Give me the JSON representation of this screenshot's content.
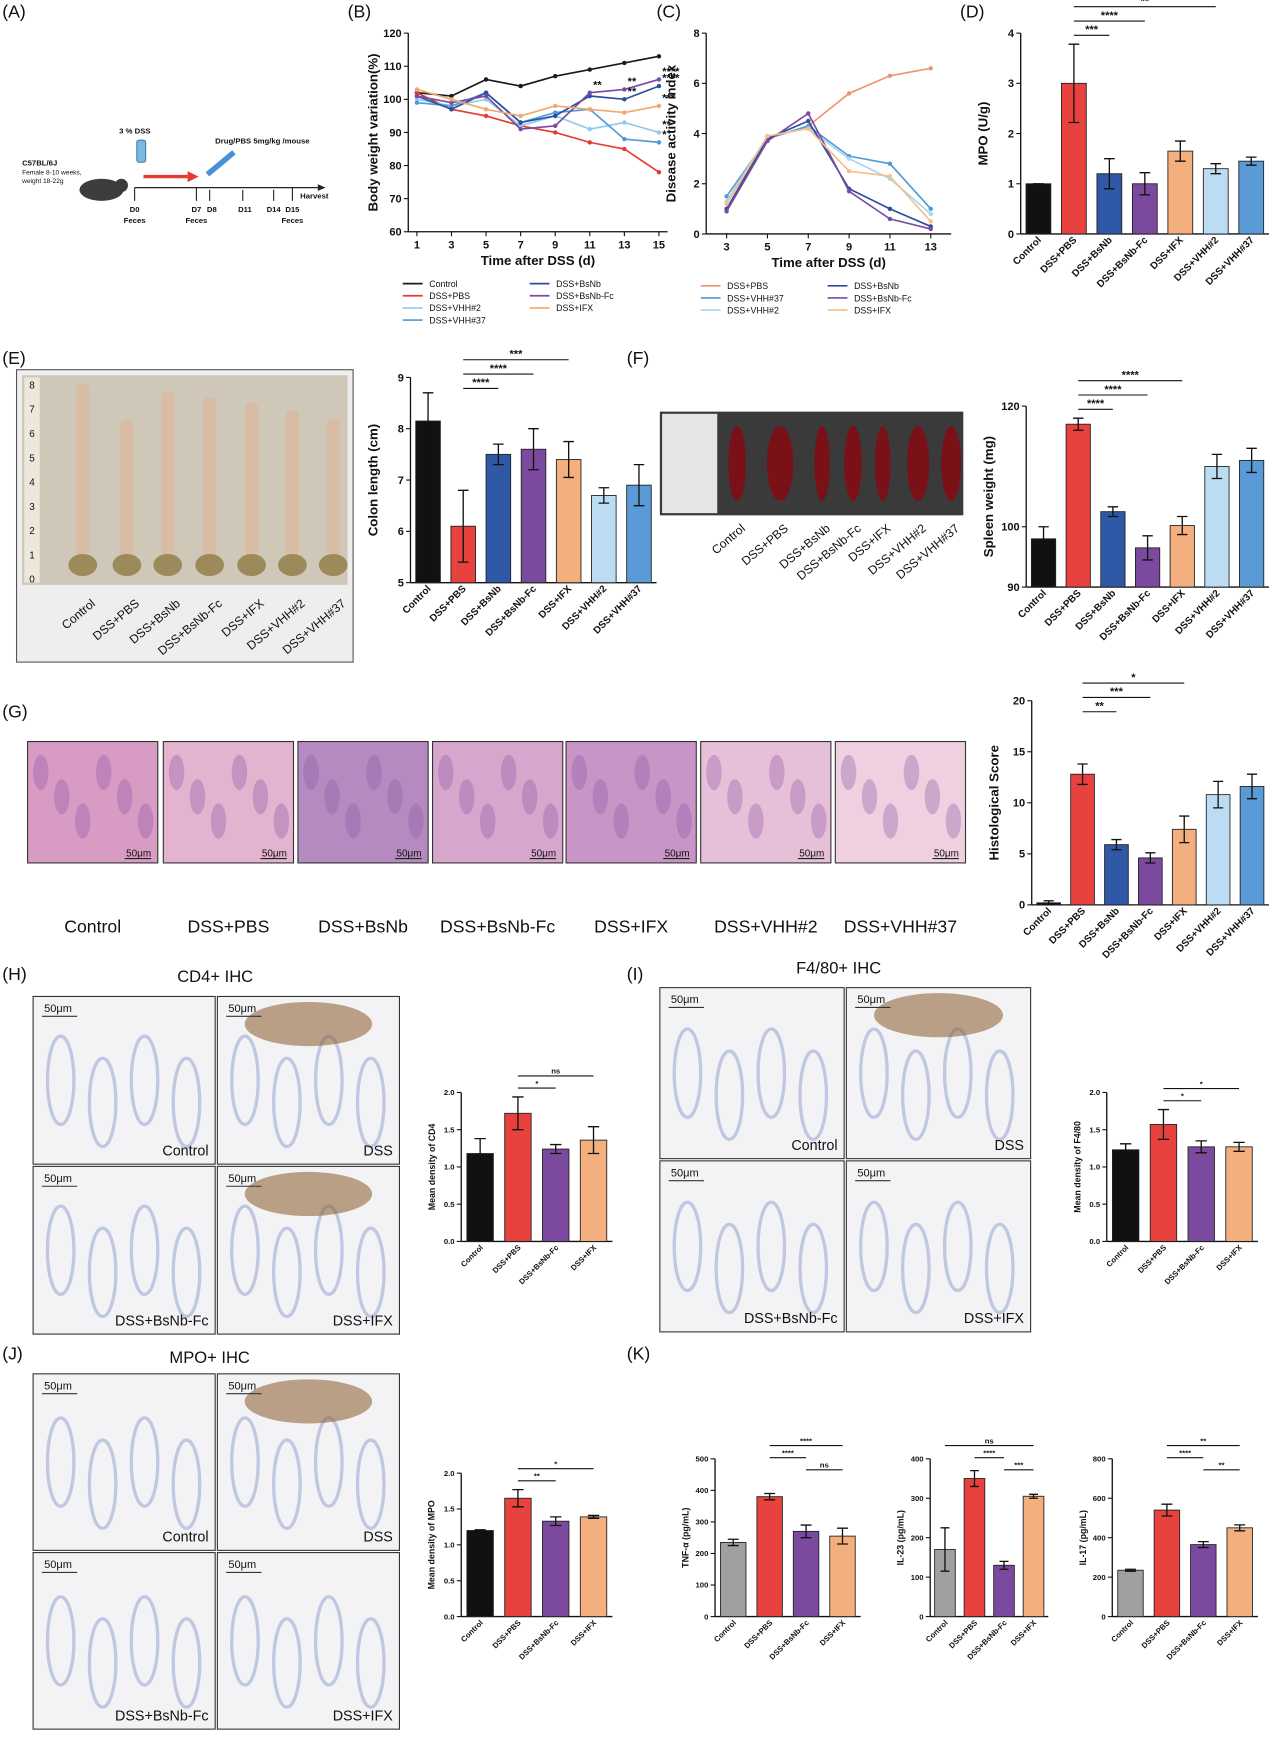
{
  "figure": {
    "panel_labels": [
      "(A)",
      "(B)",
      "(C)",
      "(D)",
      "(E)",
      "(F)",
      "(G)",
      "(H)",
      "(I)",
      "(J)",
      "(K)"
    ],
    "scale_bar": "50μm",
    "schematic": {
      "strain": "C57BL/6J",
      "mice": "Female 8-10 weeks,",
      "weight": "weight 18-22g",
      "dss": "3 % DSS",
      "drug": "Drug/PBS 5mg/kg /mouse",
      "days": [
        "D0",
        "D7",
        "D8",
        "D11",
        "D14",
        "D15"
      ],
      "sampling": "Feces",
      "harvest": "Harvest"
    },
    "colon_photo": {
      "ruler": [
        "8",
        "7",
        "6",
        "5",
        "4",
        "3",
        "2",
        "1",
        "0"
      ],
      "labels": [
        "Control",
        "DSS+PBS",
        "DSS+BsNb",
        "DSS+BsNb-Fc",
        "DSS+IFX",
        "DSS+VHH#2",
        "DSS+VHH#37"
      ]
    },
    "spleen_photo": {
      "labels": [
        "Control",
        "DSS+PBS",
        "DSS+BsNb",
        "DSS+BsNb-Fc",
        "DSS+IFX",
        "DSS+VHH#2",
        "DSS+VHH#37"
      ]
    },
    "histology": {
      "labels": [
        "Control",
        "DSS+PBS",
        "DSS+BsNb",
        "DSS+BsNb-Fc",
        "DSS+IFX",
        "DSS+VHH#2",
        "DSS+VHH#37"
      ]
    },
    "ihc": [
      {
        "title": "CD4+ IHC",
        "labels": [
          "Control",
          "DSS",
          "DSS+BsNb-Fc",
          "DSS+IFX"
        ]
      },
      {
        "title": "F4/80+ IHC",
        "labels": [
          "Control",
          "DSS",
          "DSS+BsNb-Fc",
          "DSS+IFX"
        ]
      },
      {
        "title": "MPO+ IHC",
        "labels": [
          "Control",
          "DSS",
          "DSS+BsNb-Fc",
          "DSS+IFX"
        ]
      }
    ]
  },
  "chart_data": [
    {
      "type": "line",
      "ylabel": "Body weight variation(%)",
      "xlabel": "Time after DSS (d)",
      "x": [
        1,
        3,
        5,
        7,
        9,
        11,
        13,
        15
      ],
      "xlim": [
        0.5,
        15.5
      ],
      "xticks": [
        1,
        3,
        5,
        7,
        9,
        11,
        13,
        15
      ],
      "ylim": [
        60,
        120
      ],
      "yticks": [
        60,
        70,
        80,
        90,
        100,
        110,
        120
      ],
      "series": [
        {
          "name": "Control",
          "color": "#1a1a1a",
          "values": [
            102,
            101,
            106,
            104,
            107,
            109,
            111,
            113
          ]
        },
        {
          "name": "DSS+PBS",
          "color": "#e33b32",
          "values": [
            102,
            97,
            95,
            92,
            90,
            87,
            85,
            78
          ]
        },
        {
          "name": "DSS+VHH#2",
          "color": "#8ecbee",
          "values": [
            100,
            98,
            100,
            92,
            95,
            91,
            93,
            90
          ]
        },
        {
          "name": "DSS+VHH#37",
          "color": "#4f9ad8",
          "values": [
            99,
            98,
            102,
            93,
            96,
            97,
            88,
            87
          ]
        },
        {
          "name": "DSS+BsNb",
          "color": "#2b4ea0",
          "values": [
            101,
            97,
            102,
            93,
            95,
            101,
            100,
            104
          ]
        },
        {
          "name": "DSS+BsNb-Fc",
          "color": "#7a4c9f",
          "values": [
            101,
            99,
            101,
            91,
            92,
            102,
            103,
            106
          ]
        },
        {
          "name": "DSS+IFX",
          "color": "#f4a76a",
          "values": [
            103,
            100,
            97,
            95,
            98,
            97,
            96,
            98
          ]
        }
      ],
      "annotations": [
        {
          "text": "**",
          "series": 5,
          "point": 5
        },
        {
          "text": "**",
          "series": 5,
          "point": 6
        },
        {
          "text": "**",
          "series": 4,
          "point": 6
        },
        {
          "text": "****",
          "series": 5,
          "point": 7
        },
        {
          "text": "****",
          "series": 4,
          "point": 7
        },
        {
          "text": "***",
          "series": 6,
          "point": 7
        },
        {
          "text": "**",
          "series": 2,
          "point": 7
        },
        {
          "text": "*",
          "series": 3,
          "point": 7
        }
      ]
    },
    {
      "type": "line",
      "ylabel": "Disease activity index",
      "xlabel": "Time after DSS (d)",
      "x": [
        3,
        5,
        7,
        9,
        11,
        13
      ],
      "xlim": [
        2,
        14
      ],
      "xticks": [
        3,
        5,
        7,
        9,
        11,
        13
      ],
      "ylim": [
        0,
        8
      ],
      "yticks": [
        0,
        2,
        4,
        6,
        8
      ],
      "series": [
        {
          "name": "DSS+PBS",
          "color": "#f0956b",
          "values": [
            1.2,
            3.8,
            4.3,
            5.6,
            6.3,
            6.6
          ]
        },
        {
          "name": "DSS+VHH#37",
          "color": "#4f9ad8",
          "values": [
            1.5,
            3.8,
            4.3,
            3.1,
            2.8,
            1.0
          ]
        },
        {
          "name": "DSS+VHH#2",
          "color": "#a9d6f2",
          "values": [
            1.3,
            3.9,
            4.2,
            3.0,
            2.2,
            0.8
          ]
        },
        {
          "name": "DSS+BsNb",
          "color": "#2b4ea0",
          "values": [
            1.0,
            3.8,
            4.5,
            1.8,
            1.0,
            0.3
          ]
        },
        {
          "name": "DSS+BsNb-Fc",
          "color": "#7a4c9f",
          "values": [
            0.9,
            3.7,
            4.8,
            1.7,
            0.6,
            0.2
          ]
        },
        {
          "name": "DSS+IFX",
          "color": "#f5c08a",
          "values": [
            1.2,
            3.9,
            4.2,
            2.5,
            2.3,
            0.5
          ]
        }
      ]
    },
    {
      "type": "bar",
      "ylabel": "MPO (U/g)",
      "categories": [
        "Control",
        "DSS+PBS",
        "DSS+BsNb",
        "DSS+BsNb-Fc",
        "DSS+IFX",
        "DSS+VHH#2",
        "DSS+VHH#37"
      ],
      "values": [
        1.0,
        3.0,
        1.2,
        1.0,
        1.65,
        1.3,
        1.45
      ],
      "errors": [
        0,
        0.78,
        0.3,
        0.22,
        0.2,
        0.1,
        0.08
      ],
      "colors": [
        "#111111",
        "#e8423f",
        "#2f58a6",
        "#7b4a9e",
        "#f3b07e",
        "#bcdcf3",
        "#5a9ad6"
      ],
      "ylim": [
        0,
        4
      ],
      "yticks": [
        0,
        1,
        2,
        3,
        4
      ],
      "comparisons": [
        {
          "pair": [
            1,
            2
          ],
          "label": "***"
        },
        {
          "pair": [
            1,
            3
          ],
          "label": "****"
        },
        {
          "pair": [
            1,
            5
          ],
          "label": "**"
        }
      ]
    },
    {
      "type": "bar",
      "ylabel": "Colon length (cm)",
      "categories": [
        "Control",
        "DSS+PBS",
        "DSS+BsNb",
        "DSS+BsNb-Fc",
        "DSS+IFX",
        "DSS+VHH#2",
        "DSS+VHH#37"
      ],
      "values": [
        8.15,
        6.1,
        7.5,
        7.6,
        7.4,
        6.7,
        6.9
      ],
      "errors": [
        0.55,
        0.7,
        0.2,
        0.4,
        0.35,
        0.15,
        0.4
      ],
      "colors": [
        "#111111",
        "#e8423f",
        "#2f58a6",
        "#7b4a9e",
        "#f3b07e",
        "#bcdcf3",
        "#5a9ad6"
      ],
      "ylim": [
        5,
        9
      ],
      "yticks": [
        5,
        6,
        7,
        8,
        9
      ],
      "comparisons": [
        {
          "pair": [
            1,
            2
          ],
          "label": "****"
        },
        {
          "pair": [
            1,
            3
          ],
          "label": "****"
        },
        {
          "pair": [
            1,
            4
          ],
          "label": "***"
        }
      ]
    },
    {
      "type": "bar",
      "ylabel": "Spleen weight (mg)",
      "categories": [
        "Control",
        "DSS+PBS",
        "DSS+BsNb",
        "DSS+BsNb-Fc",
        "DSS+IFX",
        "DSS+VHH#2",
        "DSS+VHH#37"
      ],
      "values": [
        98,
        117,
        102.5,
        96.5,
        100.2,
        110,
        111
      ],
      "errors": [
        2,
        1,
        0.8,
        2,
        1.5,
        2,
        2
      ],
      "colors": [
        "#111111",
        "#e8423f",
        "#2f58a6",
        "#7b4a9e",
        "#f3b07e",
        "#bcdcf3",
        "#5a9ad6"
      ],
      "ylim": [
        90,
        120
      ],
      "yticks": [
        90,
        100,
        120
      ],
      "comparisons": [
        {
          "pair": [
            1,
            2
          ],
          "label": "****"
        },
        {
          "pair": [
            1,
            3
          ],
          "label": "****"
        },
        {
          "pair": [
            1,
            4
          ],
          "label": "****"
        }
      ]
    },
    {
      "type": "bar",
      "ylabel": "Histological Score",
      "categories": [
        "Control",
        "DSS+PBS",
        "DSS+BsNb",
        "DSS+BsNb-Fc",
        "DSS+IFX",
        "DSS+VHH#2",
        "DSS+VHH#37"
      ],
      "values": [
        0.2,
        12.8,
        5.9,
        4.6,
        7.4,
        10.8,
        11.6
      ],
      "errors": [
        0.2,
        1,
        0.5,
        0.5,
        1.3,
        1.3,
        1.2
      ],
      "colors": [
        "#111111",
        "#e8423f",
        "#2f58a6",
        "#7b4a9e",
        "#f3b07e",
        "#bcdcf3",
        "#5a9ad6"
      ],
      "ylim": [
        0,
        20
      ],
      "yticks": [
        0,
        5,
        10,
        15,
        20
      ],
      "comparisons": [
        {
          "pair": [
            1,
            2
          ],
          "label": "**"
        },
        {
          "pair": [
            1,
            3
          ],
          "label": "***"
        },
        {
          "pair": [
            1,
            4
          ],
          "label": "*"
        }
      ]
    },
    {
      "type": "bar",
      "ylabel": "Mean density of CD4",
      "categories": [
        "Control",
        "DSS+PBS",
        "DSS+BsNb-Fc",
        "DSS+IFX"
      ],
      "values": [
        1.18,
        1.72,
        1.24,
        1.36
      ],
      "errors": [
        0.2,
        0.22,
        0.06,
        0.18
      ],
      "colors": [
        "#111111",
        "#e8423f",
        "#7b4a9e",
        "#f3b07e"
      ],
      "ylim": [
        0,
        2
      ],
      "yticks": [
        {
          "value": 0,
          "label": "0.0"
        },
        0.5,
        {
          "value": 1,
          "label": "1.0"
        },
        1.5,
        {
          "value": 2,
          "label": "2.0"
        }
      ],
      "comparisons": [
        {
          "pair": [
            1,
            2
          ],
          "label": "*"
        },
        {
          "pair": [
            1,
            3
          ],
          "label": "ns"
        }
      ]
    },
    {
      "type": "bar",
      "ylabel": "Mean density of F4/80",
      "categories": [
        "Control",
        "DSS+PBS",
        "DSS+BsNb-Fc",
        "DSS+IFX"
      ],
      "values": [
        1.23,
        1.57,
        1.27,
        1.27
      ],
      "errors": [
        0.08,
        0.2,
        0.08,
        0.06
      ],
      "colors": [
        "#111111",
        "#e8423f",
        "#7b4a9e",
        "#f3b07e"
      ],
      "ylim": [
        0,
        2
      ],
      "yticks": [
        {
          "value": 0,
          "label": "0.0"
        },
        0.5,
        {
          "value": 1,
          "label": "1.0"
        },
        1.5,
        {
          "value": 2,
          "label": "2.0"
        }
      ],
      "comparisons": [
        {
          "pair": [
            1,
            2
          ],
          "label": "*"
        },
        {
          "pair": [
            1,
            3
          ],
          "label": "*"
        }
      ]
    },
    {
      "type": "bar",
      "ylabel": "Mean density of MPO",
      "categories": [
        "Control",
        "DSS+PBS",
        "DSS+BsNb-Fc",
        "DSS+IFX"
      ],
      "values": [
        1.2,
        1.65,
        1.33,
        1.39
      ],
      "errors": [
        0.01,
        0.12,
        0.06,
        0.02
      ],
      "colors": [
        "#111111",
        "#e8423f",
        "#7b4a9e",
        "#f3b07e"
      ],
      "ylim": [
        0,
        2
      ],
      "yticks": [
        {
          "value": 0,
          "label": "0.0"
        },
        0.5,
        {
          "value": 1,
          "label": "1.0"
        },
        1.5,
        {
          "value": 2,
          "label": "2.0"
        }
      ],
      "comparisons": [
        {
          "pair": [
            1,
            2
          ],
          "label": "**"
        },
        {
          "pair": [
            1,
            3
          ],
          "label": "*"
        }
      ]
    },
    {
      "type": "bar",
      "ylabel": "TNF-α (pg/mL)",
      "categories": [
        "Control",
        "DSS+PBS",
        "DSS+BsNb-Fc",
        "DSS+IFX"
      ],
      "values": [
        235,
        380,
        270,
        255
      ],
      "errors": [
        10,
        10,
        20,
        25
      ],
      "colors": [
        "#a0a0a0",
        "#e8423f",
        "#7b4a9e",
        "#f3b07e"
      ],
      "ylim": [
        0,
        500
      ],
      "yticks": [
        0,
        100,
        200,
        300,
        400,
        500
      ],
      "comparisons": [
        {
          "pair": [
            2,
            3
          ],
          "label": "ns"
        },
        {
          "pair": [
            1,
            2
          ],
          "label": "****"
        },
        {
          "pair": [
            1,
            3
          ],
          "label": "****"
        }
      ]
    },
    {
      "type": "bar",
      "ylabel": "IL-23 (pg/mL)",
      "categories": [
        "Control",
        "DSS+PBS",
        "DSS+BsNb-Fc",
        "DSS+IFX"
      ],
      "values": [
        170,
        350,
        130,
        305
      ],
      "errors": [
        55,
        20,
        10,
        5
      ],
      "colors": [
        "#a0a0a0",
        "#e8423f",
        "#7b4a9e",
        "#f3b07e"
      ],
      "ylim": [
        0,
        400
      ],
      "yticks": [
        0,
        100,
        200,
        300,
        400
      ],
      "comparisons": [
        {
          "pair": [
            2,
            3
          ],
          "label": "***"
        },
        {
          "pair": [
            1,
            2
          ],
          "label": "****"
        },
        {
          "pair": [
            0,
            3
          ],
          "label": "ns"
        }
      ]
    },
    {
      "type": "bar",
      "ylabel": "IL-17 (pg/mL)",
      "categories": [
        "Control",
        "DSS+PBS",
        "DSS+BsNb-Fc",
        "DSS+IFX"
      ],
      "values": [
        235,
        540,
        365,
        450
      ],
      "errors": [
        5,
        30,
        15,
        15
      ],
      "colors": [
        "#a0a0a0",
        "#e8423f",
        "#7b4a9e",
        "#f3b07e"
      ],
      "ylim": [
        0,
        800
      ],
      "yticks": [
        0,
        200,
        400,
        600,
        800
      ],
      "comparisons": [
        {
          "pair": [
            2,
            3
          ],
          "label": "**"
        },
        {
          "pair": [
            1,
            2
          ],
          "label": "****"
        },
        {
          "pair": [
            1,
            3
          ],
          "label": "**"
        }
      ]
    }
  ]
}
